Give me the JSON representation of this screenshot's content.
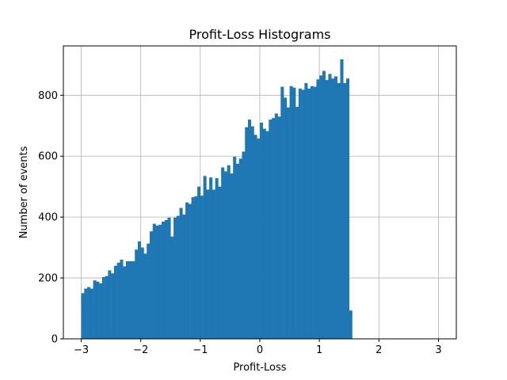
{
  "chart_data": {
    "type": "bar",
    "title": "Profit-Loss Histograms",
    "xlabel": "Profit-Loss",
    "ylabel": "Number of events",
    "xlim": [
      -3.3,
      3.3
    ],
    "ylim": [
      0,
      962
    ],
    "xticks": [
      -3,
      -2,
      -1,
      0,
      1,
      2,
      3
    ],
    "xtick_labels": [
      "−3",
      "−2",
      "−1",
      "0",
      "1",
      "2",
      "3"
    ],
    "yticks": [
      0,
      200,
      400,
      600,
      800
    ],
    "ytick_labels": [
      "0",
      "200",
      "400",
      "600",
      "800"
    ],
    "grid": true,
    "bar_color": "#1f77b4",
    "bin_start": -3.0,
    "bin_width": 0.05,
    "values": [
      150,
      165,
      170,
      165,
      192,
      188,
      182,
      203,
      206,
      225,
      215,
      240,
      250,
      260,
      238,
      255,
      255,
      255,
      293,
      320,
      300,
      280,
      313,
      353,
      378,
      372,
      375,
      385,
      390,
      398,
      336,
      398,
      404,
      430,
      408,
      448,
      443,
      465,
      468,
      500,
      470,
      535,
      490,
      530,
      490,
      528,
      500,
      563,
      550,
      570,
      543,
      598,
      575,
      592,
      615,
      695,
      720,
      698,
      670,
      658,
      710,
      690,
      682,
      720,
      725,
      740,
      730,
      828,
      792,
      760,
      830,
      825,
      762,
      822,
      818,
      840,
      822,
      830,
      828,
      852,
      865,
      880,
      850,
      870,
      855,
      862,
      840,
      918,
      840,
      855,
      93
    ]
  }
}
